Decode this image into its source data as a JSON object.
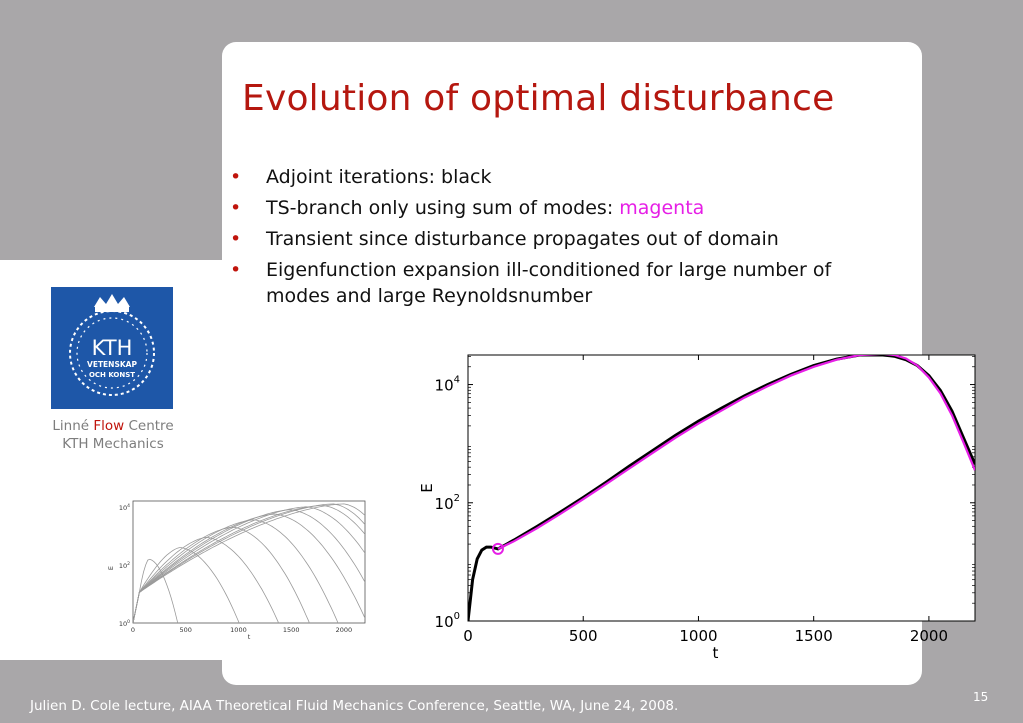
{
  "slide": {
    "title": "Evolution of optimal disturbance",
    "bullets": [
      {
        "text": "Adjoint iterations: black",
        "highlight": ""
      },
      {
        "text": "TS-branch only using sum of modes: ",
        "highlight": "magenta"
      },
      {
        "text": "Transient since disturbance propagates out of domain",
        "highlight": ""
      },
      {
        "text": "Eigenfunction expansion ill-conditioned for large number of modes and large Reynoldsnumber",
        "highlight": ""
      }
    ],
    "logo": {
      "line1": "KTH",
      "line2": "VETENSKAP",
      "line3": "OCH KONST",
      "bg_color": "#1e57a8"
    },
    "caption": {
      "part1": "Linné ",
      "flow": "Flow",
      "part2": " Centre",
      "line2": "KTH Mechanics"
    },
    "footer": "Julien D. Cole lecture, AIAA Theoretical Fluid Mechanics Conference, Seattle, WA, June 24, 2008.",
    "page_number": "15"
  },
  "colors": {
    "title": "#b5170f",
    "bullet": "#c0140c",
    "magenta": "#e61ee6",
    "adjoint": "#000000"
  },
  "chart_data": [
    {
      "type": "line",
      "id": "main",
      "title": "",
      "xlabel": "t",
      "ylabel": "E",
      "xlim": [
        0,
        2200
      ],
      "ylim_log10": [
        0,
        4.5
      ],
      "xticks": [
        0,
        500,
        1000,
        1500,
        2000
      ],
      "yticks": [
        {
          "base": "10",
          "exp": "0",
          "value_log10": 0
        },
        {
          "base": "10",
          "exp": "2",
          "value_log10": 2
        },
        {
          "base": "10",
          "exp": "4",
          "value_log10": 4
        }
      ],
      "series": [
        {
          "name": "Adjoint iterations",
          "color": "#000000",
          "x": [
            0,
            20,
            40,
            60,
            80,
            100,
            130,
            200,
            300,
            400,
            500,
            600,
            700,
            800,
            900,
            1000,
            1100,
            1200,
            1300,
            1400,
            1500,
            1600,
            1700,
            1800,
            1850,
            1900,
            1950,
            2000,
            2050,
            2100,
            2150,
            2200
          ],
          "log10_y": [
            0,
            0.7,
            1.05,
            1.2,
            1.25,
            1.25,
            1.22,
            1.37,
            1.6,
            1.84,
            2.09,
            2.35,
            2.62,
            2.88,
            3.14,
            3.38,
            3.6,
            3.81,
            4.0,
            4.17,
            4.32,
            4.43,
            4.5,
            4.5,
            4.48,
            4.42,
            4.32,
            4.15,
            3.9,
            3.55,
            3.1,
            2.65
          ]
        },
        {
          "name": "TS-branch (sum of modes)",
          "color": "#e61ee6",
          "x": [
            130,
            200,
            300,
            400,
            500,
            600,
            700,
            800,
            900,
            1000,
            1100,
            1200,
            1300,
            1400,
            1500,
            1600,
            1700,
            1800,
            1850,
            1900,
            1950,
            2000,
            2050,
            2100,
            2150,
            2200
          ],
          "log10_y": [
            1.22,
            1.35,
            1.57,
            1.81,
            2.06,
            2.32,
            2.58,
            2.84,
            3.1,
            3.34,
            3.56,
            3.78,
            3.97,
            4.15,
            4.3,
            4.42,
            4.5,
            4.52,
            4.5,
            4.44,
            4.32,
            4.12,
            3.85,
            3.48,
            3.02,
            2.55
          ]
        }
      ],
      "annotations": [
        {
          "kind": "circle",
          "x": 130,
          "log10_y": 1.22,
          "color": "#e61ee6"
        }
      ]
    },
    {
      "type": "line",
      "id": "thumbnail",
      "xlabel": "t",
      "ylabel": "E",
      "xlim": [
        0,
        2200
      ],
      "ylim_log10": [
        0,
        4.2
      ],
      "xticks": [
        0,
        500,
        1000,
        1500,
        2000
      ],
      "yticks": [
        {
          "base": "10",
          "exp": "0",
          "value_log10": 0
        },
        {
          "base": "10",
          "exp": "2",
          "value_log10": 2
        },
        {
          "base": "10",
          "exp": "4",
          "value_log10": 4
        }
      ],
      "series_note": "family of grey curves for increasing numbers of modes",
      "series": [
        {
          "name": "c1",
          "peak_t": 150,
          "peak": 2.2,
          "decay": 0.022
        },
        {
          "name": "c2",
          "peak_t": 450,
          "peak": 2.6,
          "decay": 0.006
        },
        {
          "name": "c3",
          "peak_t": 700,
          "peak": 2.95,
          "decay": 0.0045
        },
        {
          "name": "c4",
          "peak_t": 950,
          "peak": 3.3,
          "decay": 0.0045
        },
        {
          "name": "c5",
          "peak_t": 1150,
          "peak": 3.55,
          "decay": 0.004
        },
        {
          "name": "c6",
          "peak_t": 1350,
          "peak": 3.75,
          "decay": 0.0035
        },
        {
          "name": "c7",
          "peak_t": 1500,
          "peak": 3.9,
          "decay": 0.0035
        },
        {
          "name": "c8",
          "peak_t": 1650,
          "peak": 4.0,
          "decay": 0.0035
        },
        {
          "name": "c9",
          "peak_t": 1800,
          "peak": 4.05,
          "decay": 0.004
        },
        {
          "name": "c10",
          "peak_t": 1900,
          "peak": 4.1,
          "decay": 0.005
        },
        {
          "name": "c11",
          "peak_t": 2000,
          "peak": 4.1,
          "decay": 0.006
        }
      ]
    }
  ]
}
